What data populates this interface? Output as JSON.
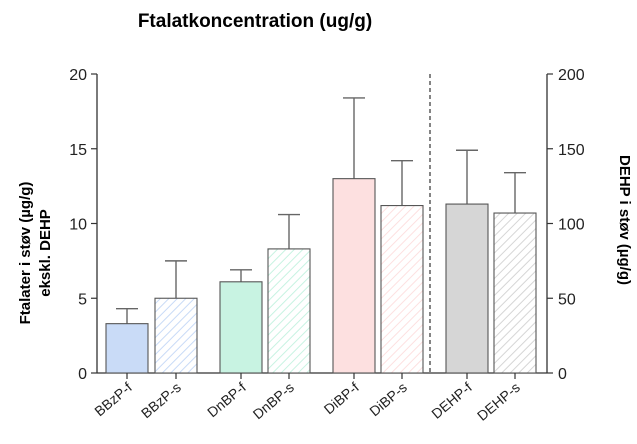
{
  "chart_data": {
    "type": "bar",
    "title": "Ftalatkoncentration (ug/g)",
    "ylabel_left": [
      "Ftalater i støv (µg/g)",
      "ekskl. DEHP"
    ],
    "ylabel_right": "DEHP i støv (µg/g)",
    "ylim_left": [
      0,
      20
    ],
    "ylim_right": [
      0,
      200
    ],
    "yticks_left": [
      0,
      5,
      10,
      15,
      20
    ],
    "yticks_right": [
      0,
      50,
      100,
      150,
      200
    ],
    "categories": [
      "BBzP-f",
      "BBzP-s",
      "DnBP-f",
      "DnBP-s",
      "DiBP-f",
      "DiBP-s",
      "DEHP-f",
      "DEHP-s"
    ],
    "axis": [
      "left",
      "left",
      "left",
      "left",
      "left",
      "left",
      "right",
      "right"
    ],
    "values": [
      3.3,
      5.0,
      6.1,
      8.3,
      13.0,
      11.2,
      113,
      107
    ],
    "error_upper": [
      4.3,
      7.5,
      6.9,
      10.6,
      18.4,
      14.2,
      149,
      134
    ],
    "colors": [
      "#c9dbf7",
      "#c9dbf7",
      "#c8f3e2",
      "#c8f3e2",
      "#fde0e0",
      "#fde0e0",
      "#d6d6d6",
      "#d6d6d6"
    ],
    "hatched": [
      false,
      true,
      false,
      true,
      false,
      true,
      false,
      true
    ],
    "separator": "dashed line between DiBP-s and DEHP-f",
    "grid": false,
    "legend": "none"
  }
}
